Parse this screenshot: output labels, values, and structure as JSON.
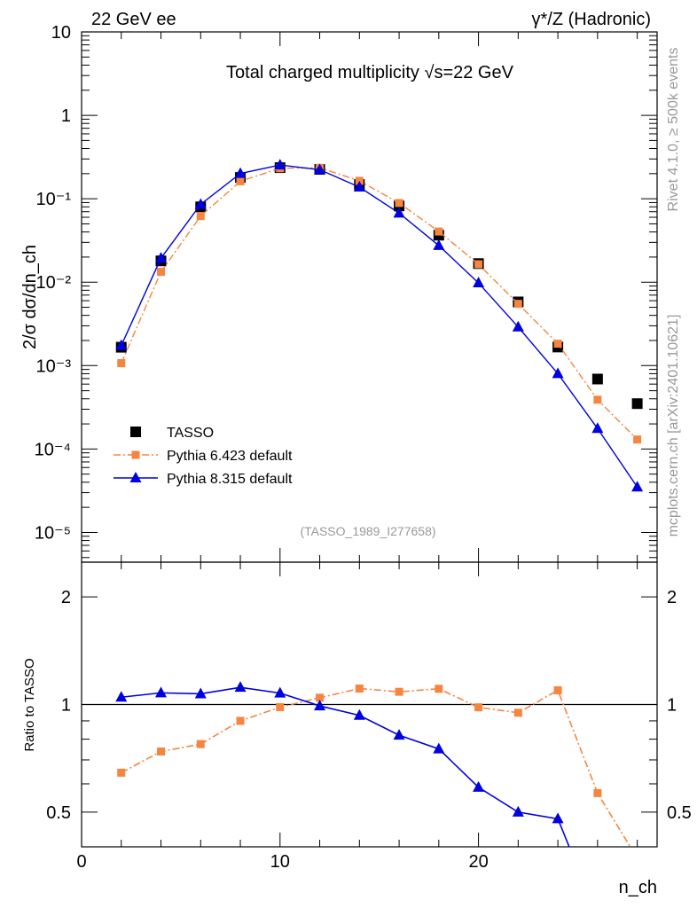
{
  "chart_data": {
    "type": "scatter",
    "header_left": "22 GeV ee",
    "header_right": "γ*/Z (Hadronic)",
    "title": "Total charged multiplicity √s=22 GeV",
    "ylabel": "2/σ   dσ/dn_ch",
    "xlabel": "n_ch",
    "ratio_ylabel": "Ratio to TASSO",
    "analysis_id": "(TASSO_1989_I277658)",
    "side_label_top": "Rivet 4.1.0, ≥ 500k events",
    "side_label_bottom": "mcplots.cern.ch [arXiv:2401.10621]",
    "xlim": [
      0,
      29
    ],
    "ylim": [
      4.4e-06,
      10
    ],
    "ratio_ylim": [
      0.4,
      2.5
    ],
    "x_ticks": [
      "0",
      "10",
      "20"
    ],
    "y_ticks": [
      "10",
      "1",
      "10⁻¹",
      "10⁻²",
      "10⁻³",
      "10⁻⁴",
      "10⁻⁵"
    ],
    "ratio_ticks": [
      "2",
      "1",
      "0.5"
    ],
    "x": [
      2,
      4,
      6,
      8,
      10,
      12,
      14,
      16,
      18,
      20,
      22,
      24,
      26,
      28
    ],
    "series": [
      {
        "name": "TASSO",
        "marker": "square",
        "color": "#000000",
        "values": [
          0.00166,
          0.018,
          0.08,
          0.18,
          0.236,
          0.225,
          0.148,
          0.082,
          0.0366,
          0.0167,
          0.0058,
          0.00167,
          0.00069,
          0.00035
        ]
      },
      {
        "name": "Pythia 6.423 default",
        "marker": "small-square",
        "color": "#f68540",
        "values": [
          0.00107,
          0.0133,
          0.062,
          0.162,
          0.232,
          0.235,
          0.164,
          0.089,
          0.0405,
          0.0164,
          0.0055,
          0.00183,
          0.00039,
          0.00013
        ]
      },
      {
        "name": "Pythia 8.315 default",
        "marker": "triangle",
        "color": "#0000e0",
        "values": [
          0.00174,
          0.0194,
          0.0857,
          0.201,
          0.254,
          0.223,
          0.138,
          0.0673,
          0.0275,
          0.0098,
          0.0029,
          0.0008,
          0.000176,
          3.5e-05
        ]
      }
    ]
  }
}
